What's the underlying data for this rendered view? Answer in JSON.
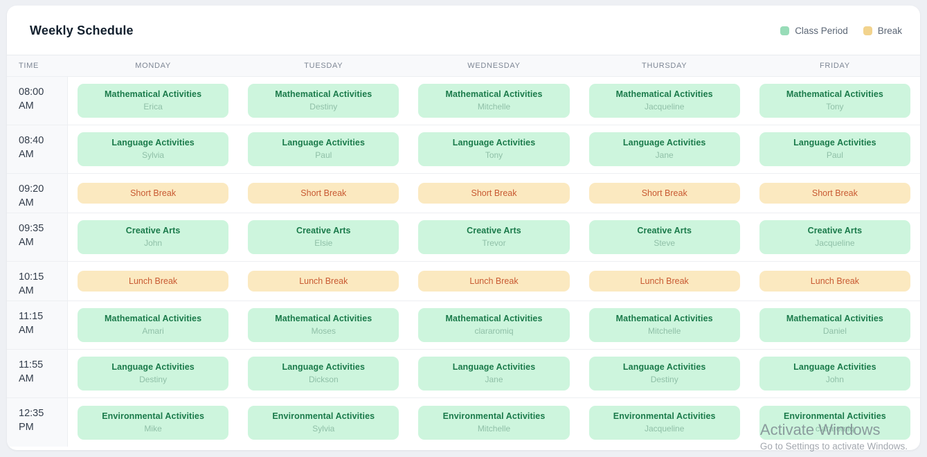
{
  "header": {
    "title": "Weekly Schedule",
    "legend": [
      {
        "label": "Class Period",
        "color": "#98dcb8"
      },
      {
        "label": "Break",
        "color": "#f2d38d"
      }
    ]
  },
  "colors": {
    "class_cell_bg": "#cdf5dd",
    "class_title_text": "#1a7a4a",
    "class_teacher_text": "#8fbfa7",
    "break_cell_bg": "#fbe9c0",
    "break_text": "#c85a32",
    "page_bg": "#eef0f4",
    "card_bg": "#ffffff"
  },
  "table": {
    "time_header": "TIME",
    "day_headers": [
      "MONDAY",
      "TUESDAY",
      "WEDNESDAY",
      "THURSDAY",
      "FRIDAY"
    ],
    "rows": [
      {
        "time": "08:00",
        "meridiem": "AM",
        "type": "class",
        "cells": [
          {
            "title": "Mathematical Activities",
            "teacher": "Erica"
          },
          {
            "title": "Mathematical Activities",
            "teacher": "Destiny"
          },
          {
            "title": "Mathematical Activities",
            "teacher": "Mitchelle"
          },
          {
            "title": "Mathematical Activities",
            "teacher": "Jacqueline"
          },
          {
            "title": "Mathematical Activities",
            "teacher": "Tony"
          }
        ]
      },
      {
        "time": "08:40",
        "meridiem": "AM",
        "type": "class",
        "cells": [
          {
            "title": "Language Activities",
            "teacher": "Sylvia"
          },
          {
            "title": "Language Activities",
            "teacher": "Paul"
          },
          {
            "title": "Language Activities",
            "teacher": "Tony"
          },
          {
            "title": "Language Activities",
            "teacher": "Jane"
          },
          {
            "title": "Language Activities",
            "teacher": "Paul"
          }
        ]
      },
      {
        "time": "09:20",
        "meridiem": "AM",
        "type": "break",
        "label": "Short Break"
      },
      {
        "time": "09:35",
        "meridiem": "AM",
        "type": "class",
        "cells": [
          {
            "title": "Creative Arts",
            "teacher": "John"
          },
          {
            "title": "Creative Arts",
            "teacher": "Elsie"
          },
          {
            "title": "Creative Arts",
            "teacher": "Trevor"
          },
          {
            "title": "Creative Arts",
            "teacher": "Steve"
          },
          {
            "title": "Creative Arts",
            "teacher": "Jacqueline"
          }
        ]
      },
      {
        "time": "10:15",
        "meridiem": "AM",
        "type": "break",
        "label": "Lunch Break"
      },
      {
        "time": "11:15",
        "meridiem": "AM",
        "type": "class",
        "cells": [
          {
            "title": "Mathematical Activities",
            "teacher": "Amari"
          },
          {
            "title": "Mathematical Activities",
            "teacher": "Moses"
          },
          {
            "title": "Mathematical Activities",
            "teacher": "clararomiq"
          },
          {
            "title": "Mathematical Activities",
            "teacher": "Mitchelle"
          },
          {
            "title": "Mathematical Activities",
            "teacher": "Daniel"
          }
        ]
      },
      {
        "time": "11:55",
        "meridiem": "AM",
        "type": "class",
        "cells": [
          {
            "title": "Language Activities",
            "teacher": "Destiny"
          },
          {
            "title": "Language Activities",
            "teacher": "Dickson"
          },
          {
            "title": "Language Activities",
            "teacher": "Jane"
          },
          {
            "title": "Language Activities",
            "teacher": "Destiny"
          },
          {
            "title": "Language Activities",
            "teacher": "John"
          }
        ]
      },
      {
        "time": "12:35",
        "meridiem": "PM",
        "type": "class",
        "cells": [
          {
            "title": "Environmental Activities",
            "teacher": "Mike"
          },
          {
            "title": "Environmental Activities",
            "teacher": "Sylvia"
          },
          {
            "title": "Environmental Activities",
            "teacher": "Mitchelle"
          },
          {
            "title": "Environmental Activities",
            "teacher": "Jacqueline"
          },
          {
            "title": "Environmental Activities",
            "teacher": "clararomiq"
          }
        ]
      }
    ]
  },
  "watermark": {
    "line1": "Activate Windows",
    "line2": "Go to Settings to activate Windows."
  }
}
